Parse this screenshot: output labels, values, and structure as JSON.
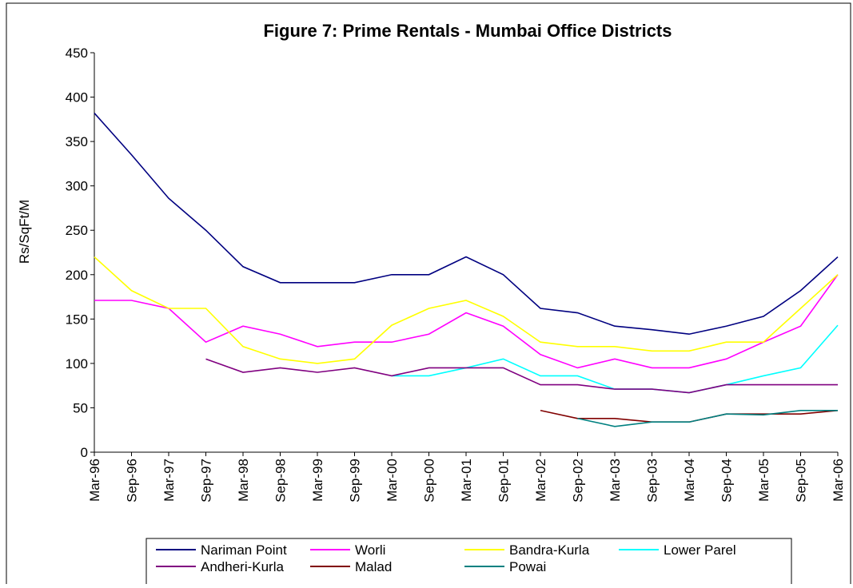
{
  "chart_data": {
    "type": "line",
    "title": "Figure 7: Prime Rentals - Mumbai Office Districts",
    "y_label": "Rs/SqFt/M",
    "categories": [
      "Mar-96",
      "Sep-96",
      "Mar-97",
      "Sep-97",
      "Mar-98",
      "Sep-98",
      "Mar-99",
      "Sep-99",
      "Mar-00",
      "Sep-00",
      "Mar-01",
      "Sep-01",
      "Mar-02",
      "Sep-02",
      "Mar-03",
      "Sep-03",
      "Mar-04",
      "Sep-04",
      "Mar-05",
      "Sep-05",
      "Mar-06"
    ],
    "series": [
      {
        "name": "Nariman Point",
        "color": "#000080",
        "values": [
          382,
          335,
          286,
          250,
          209,
          191,
          191,
          191,
          200,
          200,
          220,
          200,
          162,
          157,
          142,
          138,
          133,
          142,
          153,
          182,
          220
        ]
      },
      {
        "name": "Worli",
        "color": "#ff00ff",
        "values": [
          171,
          171,
          162,
          124,
          142,
          133,
          119,
          124,
          124,
          133,
          157,
          142,
          110,
          95,
          105,
          95,
          95,
          105,
          124,
          142,
          200
        ]
      },
      {
        "name": "Bandra-Kurla",
        "color": "#ffff00",
        "values": [
          220,
          182,
          162,
          162,
          119,
          105,
          100,
          105,
          143,
          162,
          171,
          153,
          124,
          119,
          119,
          114,
          114,
          124,
          124,
          162,
          200
        ]
      },
      {
        "name": "Lower Parel",
        "color": "#00ffff",
        "values": [
          null,
          null,
          null,
          null,
          null,
          null,
          null,
          null,
          86,
          86,
          95,
          105,
          86,
          86,
          71,
          71,
          67,
          76,
          86,
          95,
          143
        ]
      },
      {
        "name": "Andheri-Kurla",
        "color": "#800080",
        "values": [
          null,
          null,
          null,
          105,
          90,
          95,
          90,
          95,
          86,
          95,
          95,
          95,
          76,
          76,
          71,
          71,
          67,
          76,
          76,
          76,
          76
        ]
      },
      {
        "name": "Malad",
        "color": "#800000",
        "values": [
          null,
          null,
          null,
          null,
          null,
          null,
          null,
          null,
          null,
          null,
          null,
          null,
          47,
          38,
          38,
          34,
          34,
          43,
          43,
          43,
          47
        ]
      },
      {
        "name": "Powai",
        "color": "#008080",
        "values": [
          null,
          null,
          null,
          null,
          null,
          null,
          null,
          null,
          null,
          null,
          null,
          null,
          null,
          38,
          29,
          34,
          34,
          43,
          42,
          47,
          47
        ]
      }
    ],
    "ylim": [
      0,
      450
    ],
    "yticks": [
      0,
      50,
      100,
      150,
      200,
      250,
      300,
      350,
      400,
      450
    ],
    "grid": false,
    "legend": "bottom"
  }
}
